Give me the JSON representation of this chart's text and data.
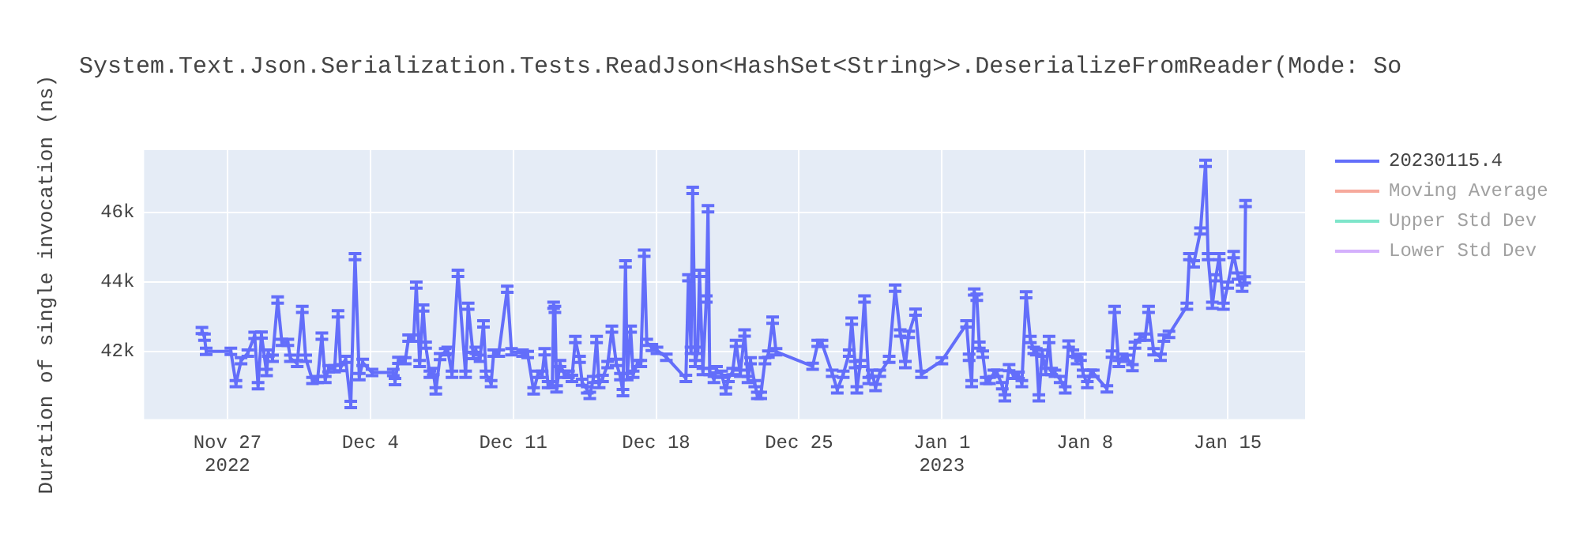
{
  "chart_data": {
    "type": "line",
    "title": "System.Text.Json.Serialization.Tests.ReadJson<HashSet<String>>.DeserializeFromReader(Mode: So",
    "ylabel": "Duration of single invocation (ns)",
    "xlim": [
      "2022-11-22T22:00",
      "2023-01-18T19:00"
    ],
    "xticks": [
      {
        "value": "2022-11-27",
        "label": "Nov 27\n2022"
      },
      {
        "value": "2022-12-04",
        "label": "Dec 4"
      },
      {
        "value": "2022-12-11",
        "label": "Dec 11"
      },
      {
        "value": "2022-12-18",
        "label": "Dec 18"
      },
      {
        "value": "2022-12-25",
        "label": "Dec 25"
      },
      {
        "value": "2023-01-01",
        "label": "Jan 1\n2023"
      },
      {
        "value": "2023-01-08",
        "label": "Jan 8"
      },
      {
        "value": "2023-01-15",
        "label": "Jan 15"
      }
    ],
    "ylim": [
      40050,
      47800
    ],
    "yticks": [
      {
        "value": 42000,
        "label": "42k"
      },
      {
        "value": 44000,
        "label": "44k"
      },
      {
        "value": 46000,
        "label": "46k"
      }
    ],
    "grid": true,
    "legend": "top right",
    "marker": "none",
    "line_style": "solid",
    "series": [
      {
        "name": "20230115.4",
        "color": "#636efa",
        "x": [
          "2022-11-25T18:00",
          "2022-11-25T21:00",
          "2022-11-25T23:00",
          "2022-11-27T04:00",
          "2022-11-27T10:00",
          "2022-11-27T16:00",
          "2022-11-28T00:00",
          "2022-11-28T08:00",
          "2022-11-28T12:00",
          "2022-11-28T16:00",
          "2022-11-28T22:00",
          "2022-11-29T00:00",
          "2022-11-29T05:00",
          "2022-11-29T11:00",
          "2022-11-29T16:00",
          "2022-11-29T23:00",
          "2022-11-30T02:00",
          "2022-11-30T10:00",
          "2022-11-30T16:00",
          "2022-11-30T20:00",
          "2022-12-01T04:00",
          "2022-12-01T10:00",
          "2022-12-01T15:00",
          "2022-12-01T19:00",
          "2022-12-01T23:00",
          "2022-12-02T06:00",
          "2022-12-02T10:00",
          "2022-12-02T13:00",
          "2022-12-02T19:00",
          "2022-12-03T01:00",
          "2022-12-03T06:00",
          "2022-12-03T11:00",
          "2022-12-03T15:00",
          "2022-12-04T02:00",
          "2022-12-05T03:00",
          "2022-12-05T05:00",
          "2022-12-05T09:00",
          "2022-12-05T17:00",
          "2022-12-05T21:00",
          "2022-12-06T03:00",
          "2022-12-06T06:00",
          "2022-12-06T10:00",
          "2022-12-06T14:00",
          "2022-12-06T17:00",
          "2022-12-06T22:00",
          "2022-12-07T02:00",
          "2022-12-07T05:00",
          "2022-12-07T10:00",
          "2022-12-07T16:00",
          "2022-12-07T19:00",
          "2022-12-08T00:00",
          "2022-12-08T07:00",
          "2022-12-08T16:00",
          "2022-12-08T19:00",
          "2022-12-09T01:00",
          "2022-12-09T04:00",
          "2022-12-09T09:00",
          "2022-12-09T13:00",
          "2022-12-09T16:00",
          "2022-12-09T22:00",
          "2022-12-10T01:00",
          "2022-12-10T07:00",
          "2022-12-10T17:00",
          "2022-12-10T22:00",
          "2022-12-11T11:00",
          "2022-12-11T17:00",
          "2022-12-12T00:00",
          "2022-12-12T05:00",
          "2022-12-12T10:00",
          "2022-12-12T13:00",
          "2022-12-12T17:00",
          "2022-12-12T22:00",
          "2022-12-12T23:30",
          "2022-12-13T01:00",
          "2022-12-13T03:00",
          "2022-12-13T07:00",
          "2022-12-13T12:00",
          "2022-12-13T17:00",
          "2022-12-13T21:00",
          "2022-12-14T01:00",
          "2022-12-14T06:00",
          "2022-12-14T09:00",
          "2022-12-14T15:00",
          "2022-12-14T18:00",
          "2022-12-14T22:00",
          "2022-12-15T02:00",
          "2022-12-15T05:00",
          "2022-12-15T09:00",
          "2022-12-15T15:00",
          "2022-12-15T20:00",
          "2022-12-16T01:00",
          "2022-12-16T06:00",
          "2022-12-16T09:00",
          "2022-12-16T12:00",
          "2022-12-16T14:00",
          "2022-12-16T18:00",
          "2022-12-16T21:00",
          "2022-12-17T02:00",
          "2022-12-17T06:00",
          "2022-12-17T10:00",
          "2022-12-17T13:00",
          "2022-12-17T19:00",
          "2022-12-18T01:00",
          "2022-12-18T12:00",
          "2022-12-19T11:00",
          "2022-12-19T14:00",
          "2022-12-19T17:00",
          "2022-12-19T19:00",
          "2022-12-19T22:00",
          "2022-12-20T01:00",
          "2022-12-20T03:00",
          "2022-12-20T07:00",
          "2022-12-20T11:00",
          "2022-12-20T13:00",
          "2022-12-20T15:00",
          "2022-12-20T20:00",
          "2022-12-20T23:00",
          "2022-12-21T05:00",
          "2022-12-21T10:00",
          "2022-12-21T13:00",
          "2022-12-21T18:00",
          "2022-12-21T22:00",
          "2022-12-22T03:00",
          "2022-12-22T08:00",
          "2022-12-22T12:00",
          "2022-12-22T15:00",
          "2022-12-22T20:00",
          "2022-12-22T23:00",
          "2022-12-23T03:00",
          "2022-12-23T08:00",
          "2022-12-23T12:00",
          "2022-12-23T17:00",
          "2022-12-23T21:00",
          "2022-12-25T16:00",
          "2022-12-25T22:00",
          "2022-12-26T03:00",
          "2022-12-26T15:00",
          "2022-12-26T21:00",
          "2022-12-27T04:00",
          "2022-12-27T11:00",
          "2022-12-27T14:00",
          "2022-12-27T18:00",
          "2022-12-27T20:00",
          "2022-12-28T00:00",
          "2022-12-28T05:00",
          "2022-12-28T10:00",
          "2022-12-28T14:00",
          "2022-12-28T18:00",
          "2022-12-28T23:00",
          "2022-12-29T10:00",
          "2022-12-29T17:00",
          "2022-12-29T23:00",
          "2022-12-30T05:00",
          "2022-12-30T09:00",
          "2022-12-30T17:00",
          "2022-12-31T00:00",
          "2023-01-01T00:00",
          "2023-01-02T05:00",
          "2023-01-02T08:00",
          "2023-01-02T11:00",
          "2023-01-02T14:00",
          "2023-01-02T17:00",
          "2023-01-02T20:00",
          "2023-01-03T00:00",
          "2023-01-03T04:00",
          "2023-01-03T08:00",
          "2023-01-03T13:00",
          "2023-01-03T17:00",
          "2023-01-03T23:00",
          "2023-01-04T02:00",
          "2023-01-04T07:00",
          "2023-01-04T12:00",
          "2023-01-04T18:00",
          "2023-01-04T22:00",
          "2023-01-05T03:00",
          "2023-01-05T08:00",
          "2023-01-05T12:00",
          "2023-01-05T15:00",
          "2023-01-05T18:00",
          "2023-01-05T22:00",
          "2023-01-06T02:00",
          "2023-01-06T06:00",
          "2023-01-06T09:00",
          "2023-01-06T13:00",
          "2023-01-06T19:00",
          "2023-01-07T01:00",
          "2023-01-07T05:00",
          "2023-01-07T10:00",
          "2023-01-07T15:00",
          "2023-01-07T19:00",
          "2023-01-07T22:00",
          "2023-01-08T03:00",
          "2023-01-08T07:00",
          "2023-01-08T10:00",
          "2023-01-09T02:00",
          "2023-01-09T08:00",
          "2023-01-09T11:00",
          "2023-01-09T16:00",
          "2023-01-09T20:00",
          "2023-01-10T02:00",
          "2023-01-10T08:00",
          "2023-01-10T11:00",
          "2023-01-10T17:00",
          "2023-01-10T23:00",
          "2023-01-11T03:00",
          "2023-01-11T09:00",
          "2023-01-11T17:00",
          "2023-01-11T21:00",
          "2023-01-12T03:00",
          "2023-01-13T00:00",
          "2023-01-13T03:00",
          "2023-01-13T08:00",
          "2023-01-13T16:00",
          "2023-01-13T22:00",
          "2023-01-14T01:00",
          "2023-01-14T06:00",
          "2023-01-14T10:00",
          "2023-01-14T14:00",
          "2023-01-14T19:00",
          "2023-01-15T00:00",
          "2023-01-15T07:00",
          "2023-01-15T12:00",
          "2023-01-15T17:00",
          "2023-01-15T20:00",
          "2023-01-15T21:00"
        ],
        "values": [
          42600,
          42410,
          42000,
          42000,
          41070,
          41730,
          41950,
          42460,
          41010,
          42470,
          41390,
          41950,
          41800,
          43480,
          42260,
          42260,
          41800,
          41650,
          43210,
          41800,
          41160,
          41190,
          42440,
          41190,
          41500,
          41500,
          43080,
          41530,
          41770,
          40470,
          44730,
          41270,
          41680,
          41390,
          41390,
          41130,
          41740,
          41730,
          42380,
          42380,
          43910,
          41650,
          43250,
          42180,
          41340,
          41420,
          40860,
          41850,
          41990,
          42030,
          41340,
          44250,
          41340,
          43300,
          41880,
          42030,
          41800,
          42790,
          41340,
          41070,
          41950,
          41950,
          43790,
          41990,
          41950,
          41910,
          40860,
          41340,
          41340,
          41990,
          41040,
          41040,
          43330,
          43210,
          40920,
          41650,
          41340,
          41340,
          41220,
          42340,
          41770,
          41110,
          40890,
          40730,
          41190,
          42340,
          41040,
          41220,
          41620,
          42640,
          41680,
          41270,
          40810,
          44520,
          41270,
          42640,
          41340,
          41650,
          41650,
          44830,
          42260,
          42110,
          42030,
          41830,
          41220,
          44120,
          42030,
          46640,
          41650,
          42030,
          44250,
          41420,
          43510,
          46110,
          41420,
          41190,
          41470,
          41340,
          40860,
          41220,
          41420,
          42230,
          41370,
          42530,
          41190,
          41730,
          41070,
          40730,
          40730,
          41730,
          41920,
          42900,
          41990,
          41570,
          42230,
          42230,
          41370,
          40890,
          41340,
          41950,
          42870,
          41620,
          40890,
          41650,
          43510,
          41160,
          41370,
          40960,
          41370,
          41770,
          43820,
          42530,
          41620,
          42490,
          43130,
          41340,
          41730,
          42790,
          41830,
          41070,
          43710,
          43560,
          42180,
          41920,
          41160,
          41160,
          41370,
          41370,
          41010,
          40660,
          41530,
          41310,
          41310,
          41070,
          43630,
          42340,
          42030,
          41990,
          40660,
          41950,
          41420,
          42340,
          41420,
          41370,
          41190,
          40890,
          42210,
          41950,
          41730,
          41830,
          41370,
          41040,
          41370,
          41370,
          40920,
          41920,
          43210,
          41650,
          41830,
          41800,
          41530,
          42180,
          42410,
          42410,
          43210,
          41990,
          41830,
          42380,
          42490,
          43300,
          44730,
          44520,
          45470,
          47420,
          44730,
          43330,
          44120,
          44730,
          43300,
          43910,
          44790,
          44170,
          43820,
          44060,
          46260
        ],
        "errors": [
          90,
          90,
          90,
          90,
          90,
          90,
          90,
          90,
          90,
          90,
          90,
          90,
          90,
          90,
          90,
          90,
          90,
          90,
          90,
          90,
          90,
          90,
          90,
          90,
          90,
          90,
          90,
          90,
          90,
          90,
          90,
          90,
          90,
          90,
          90,
          90,
          90,
          90,
          90,
          90,
          90,
          90,
          90,
          90,
          90,
          90,
          90,
          90,
          90,
          90,
          90,
          90,
          90,
          90,
          90,
          90,
          90,
          90,
          90,
          90,
          90,
          90,
          90,
          90,
          90,
          90,
          90,
          90,
          90,
          90,
          90,
          90,
          90,
          90,
          90,
          90,
          90,
          90,
          90,
          90,
          90,
          90,
          90,
          90,
          90,
          90,
          90,
          90,
          90,
          90,
          90,
          90,
          90,
          90,
          90,
          90,
          90,
          90,
          90,
          90,
          90,
          90,
          90,
          90,
          90,
          90,
          90,
          90,
          90,
          90,
          90,
          90,
          90,
          90,
          90,
          90,
          90,
          90,
          90,
          90,
          90,
          90,
          90,
          90,
          90,
          90,
          90,
          90,
          90,
          90,
          90,
          90,
          90,
          90,
          90,
          90,
          90,
          90,
          90,
          90,
          90,
          90,
          90,
          90,
          90,
          90,
          90,
          90,
          90,
          90,
          90,
          90,
          90,
          90,
          90,
          90,
          90,
          90,
          90,
          90,
          90,
          90,
          90,
          90,
          90,
          90,
          90,
          90,
          90,
          90,
          90,
          90,
          90,
          90,
          90,
          90,
          90,
          90,
          90,
          90,
          90,
          90,
          90,
          90,
          90,
          90,
          90,
          90,
          90,
          90,
          90,
          90,
          90,
          90,
          90,
          90,
          90,
          90,
          90,
          90,
          90,
          90,
          90,
          90,
          90,
          90,
          90,
          90,
          90,
          90,
          90,
          90,
          90,
          90,
          90,
          90,
          90,
          90,
          90,
          90,
          90,
          90,
          90,
          90,
          90
        ]
      },
      {
        "name": "Moving Average",
        "color": "#ef553b"
      },
      {
        "name": "Upper Std Dev",
        "color": "#00cc96"
      },
      {
        "name": "Lower Std Dev",
        "color": "#ab63fa"
      }
    ]
  }
}
